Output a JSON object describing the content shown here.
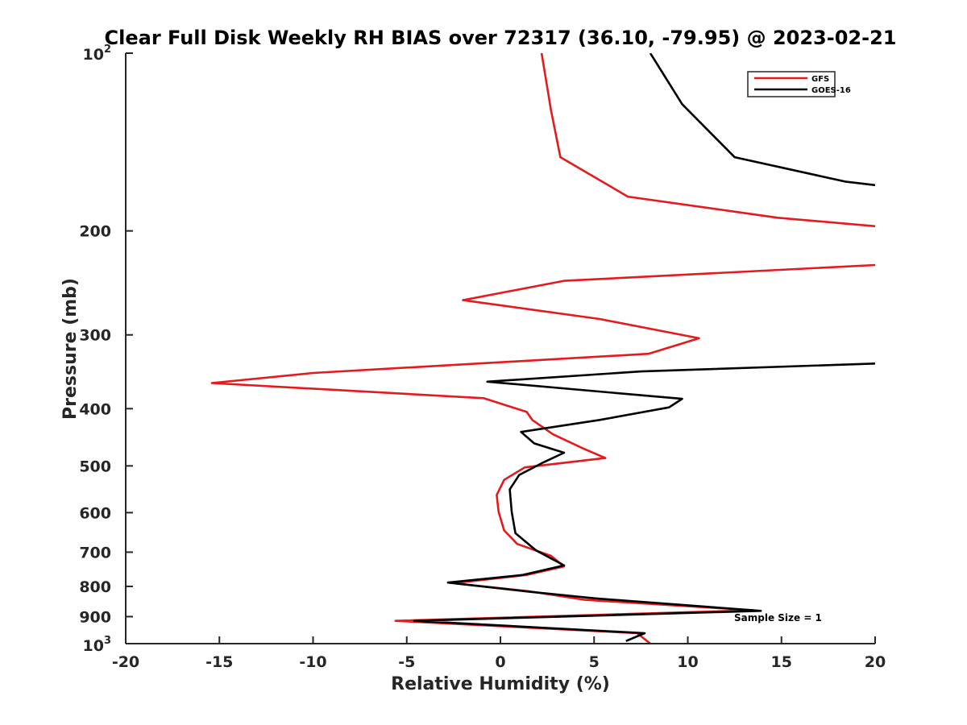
{
  "chart_data": {
    "type": "line",
    "title": "Clear Full Disk Weekly RH BIAS over 72317 (36.10, -79.95) @ 2023-02-21",
    "xlabel": "Relative Humidity (%)",
    "ylabel": "Pressure (mb)",
    "xlim": [
      -20,
      20
    ],
    "ylim": [
      100,
      1000
    ],
    "yscale": "log",
    "y_reversed": true,
    "grid": false,
    "legend_position": "top-right",
    "x_ticks": [
      -20,
      -15,
      -10,
      -5,
      0,
      5,
      10,
      15,
      20
    ],
    "x_tick_labels": [
      "-20",
      "-15",
      "-10",
      "-5",
      "0",
      "5",
      "10",
      "15",
      "20"
    ],
    "y_ticks": [
      200,
      300,
      400,
      500,
      600,
      700,
      800,
      900
    ],
    "y_tick_labels": [
      "200",
      "300",
      "400",
      "500",
      "600",
      "700",
      "800",
      "900"
    ],
    "y_tick_100": {
      "base": "10",
      "exp": "2"
    },
    "y_tick_1000": {
      "base": "10",
      "exp": "3"
    },
    "annotation": "Sample Size = 1",
    "series": [
      {
        "name": "GFS",
        "color": "#e41a1c",
        "points": [
          [
            2.2,
            100
          ],
          [
            2.7,
            125
          ],
          [
            3.2,
            150
          ],
          [
            6.8,
            175
          ],
          [
            14.8,
            190
          ],
          [
            20.5,
            197
          ],
          [
            20.5,
            228
          ],
          [
            3.4,
            243
          ],
          [
            -2.0,
            262
          ],
          [
            5.3,
            282
          ],
          [
            10.6,
            304
          ],
          [
            7.9,
            323
          ],
          [
            -10.0,
            348
          ],
          [
            -15.4,
            362
          ],
          [
            -0.9,
            384
          ],
          [
            1.4,
            405
          ],
          [
            1.7,
            418
          ],
          [
            2.8,
            442
          ],
          [
            4.4,
            467
          ],
          [
            5.6,
            485
          ],
          [
            1.3,
            503
          ],
          [
            0.2,
            528
          ],
          [
            -0.2,
            560
          ],
          [
            -0.1,
            598
          ],
          [
            0.2,
            643
          ],
          [
            0.9,
            678
          ],
          [
            2.7,
            710
          ],
          [
            3.4,
            740
          ],
          [
            1.4,
            765
          ],
          [
            -2.5,
            790
          ],
          [
            1.5,
            815
          ],
          [
            4.5,
            843
          ],
          [
            13.5,
            878
          ],
          [
            -5.6,
            915
          ],
          [
            7.3,
            960
          ],
          [
            8.0,
            1000
          ]
        ]
      },
      {
        "name": "GOES-16",
        "color": "#000000",
        "points": [
          [
            8.0,
            100
          ],
          [
            9.7,
            122
          ],
          [
            12.5,
            150
          ],
          [
            18.4,
            165
          ],
          [
            20.5,
            168
          ],
          [
            20.5,
            335
          ],
          [
            7.5,
            346
          ],
          [
            -0.7,
            360
          ],
          [
            9.7,
            385
          ],
          [
            9.0,
            398
          ],
          [
            5.3,
            418
          ],
          [
            1.1,
            438
          ],
          [
            1.8,
            458
          ],
          [
            3.4,
            475
          ],
          [
            2.3,
            493
          ],
          [
            1.0,
            518
          ],
          [
            0.5,
            548
          ],
          [
            0.6,
            598
          ],
          [
            0.8,
            650
          ],
          [
            1.9,
            695
          ],
          [
            3.4,
            737
          ],
          [
            1.2,
            765
          ],
          [
            -2.8,
            788
          ],
          [
            1.6,
            817
          ],
          [
            5.0,
            838
          ],
          [
            13.9,
            880
          ],
          [
            -4.6,
            915
          ],
          [
            7.7,
            960
          ],
          [
            6.7,
            990
          ]
        ]
      }
    ]
  }
}
